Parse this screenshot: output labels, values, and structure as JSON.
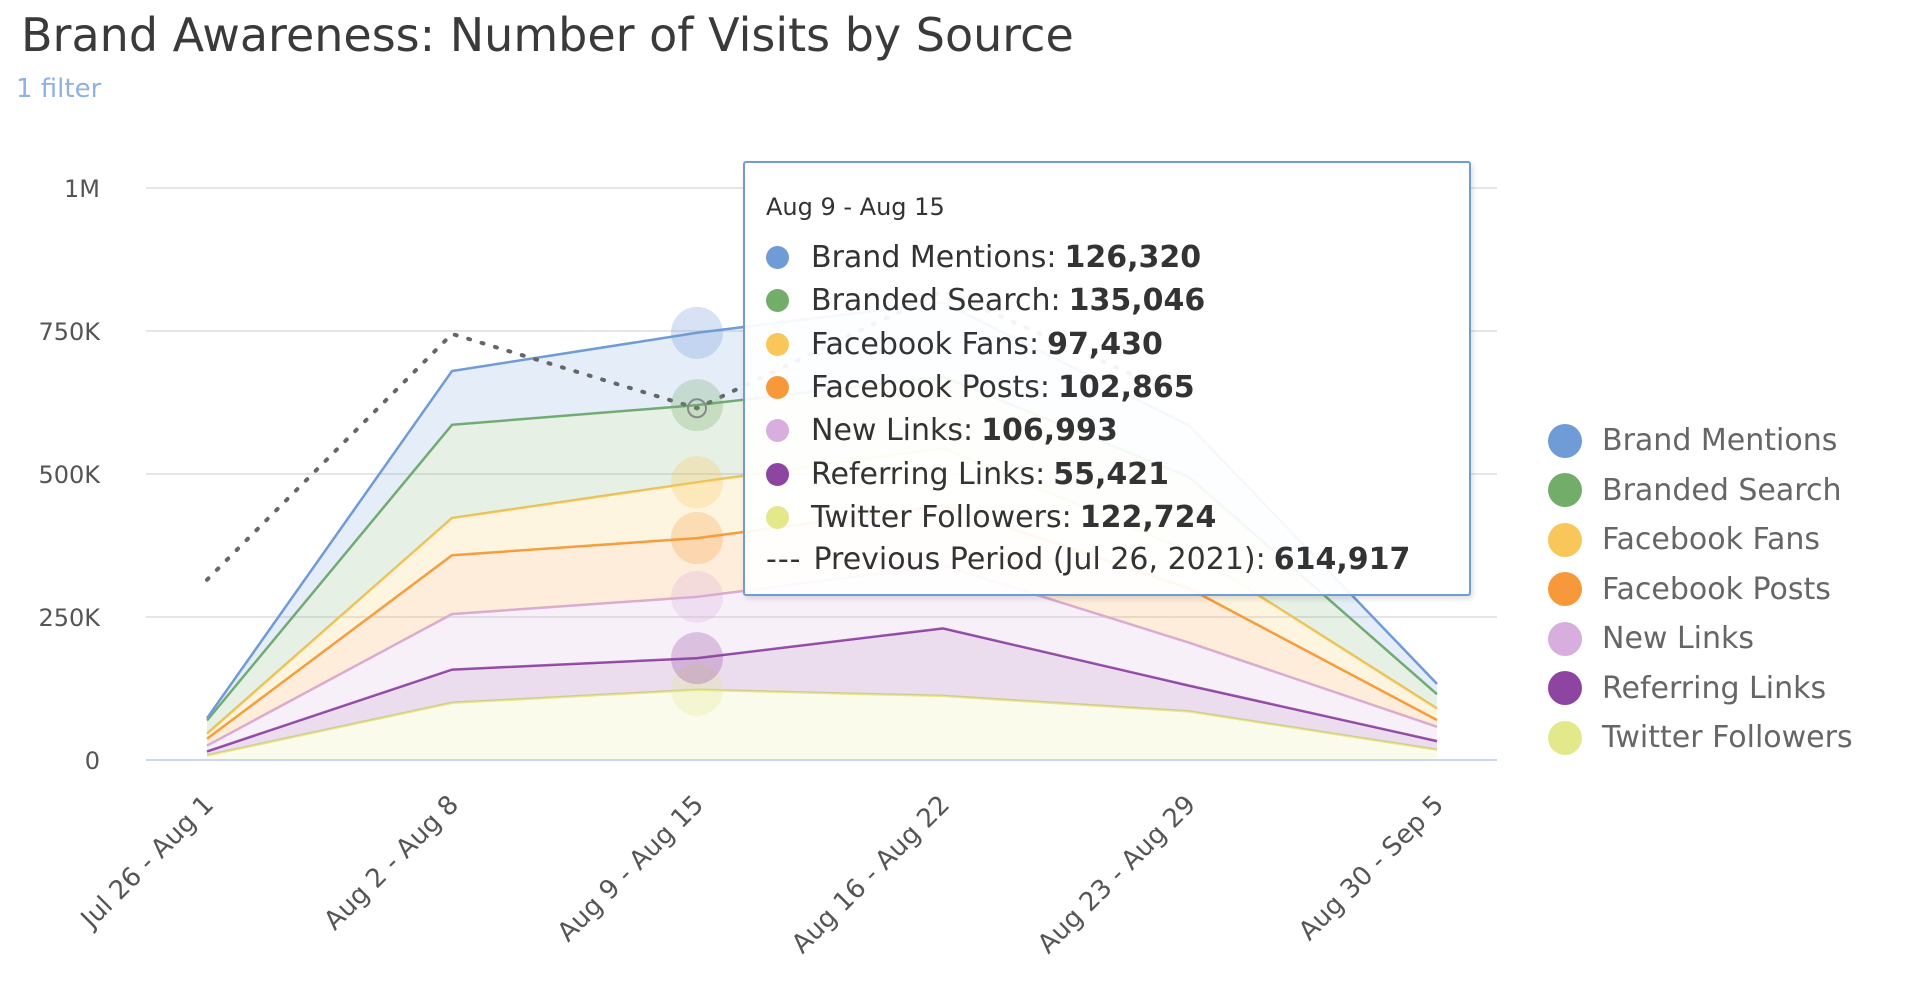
{
  "header": {
    "title": "Brand Awareness: Number of Visits by Source",
    "filter_label": "1 filter"
  },
  "chart_data": {
    "type": "area",
    "stacked": true,
    "categories": [
      "Jul 26 - Aug 1",
      "Aug 2 - Aug 8",
      "Aug 9 - Aug 15",
      "Aug 16 - Aug 22",
      "Aug 23 - Aug 29",
      "Aug 30 - Sep 5"
    ],
    "y_ticks": [
      "0",
      "250K",
      "500K",
      "750K",
      "1M"
    ],
    "ylim": [
      0,
      1000000
    ],
    "grid": true,
    "legend_position": "right",
    "series": [
      {
        "name": "Twitter Followers",
        "color": "#e3e88b",
        "values": [
          8000,
          100000,
          122724,
          112000,
          85000,
          18000
        ]
      },
      {
        "name": "Referring Links",
        "color": "#8e44a1",
        "values": [
          7000,
          58000,
          55421,
          118000,
          45000,
          15000
        ]
      },
      {
        "name": "New Links",
        "color": "#d7aede",
        "values": [
          10000,
          97000,
          106993,
          110000,
          75000,
          25000
        ]
      },
      {
        "name": "Facebook Posts",
        "color": "#f7993a",
        "values": [
          12000,
          103000,
          102865,
          105000,
          95000,
          12000
        ]
      },
      {
        "name": "Facebook Fans",
        "color": "#f9c65a",
        "values": [
          9000,
          65000,
          97430,
          100000,
          65000,
          20000
        ]
      },
      {
        "name": "Branded Search",
        "color": "#72ad6a",
        "values": [
          23000,
          163000,
          135046,
          125000,
          130000,
          25000
        ]
      },
      {
        "name": "Brand Mentions",
        "color": "#6f9bd6",
        "values": [
          4000,
          94000,
          126320,
          130000,
          90000,
          18000
        ]
      }
    ],
    "previous_period": {
      "label": "Previous Period (Jul 26, 2021)",
      "values": [
        315000,
        745000,
        614917,
        820000,
        630000
      ]
    },
    "highlight_index": 2
  },
  "legend": {
    "items": [
      {
        "label": "Brand Mentions",
        "color": "#6f9bd6"
      },
      {
        "label": "Branded Search",
        "color": "#72ad6a"
      },
      {
        "label": "Facebook Fans",
        "color": "#f9c65a"
      },
      {
        "label": "Facebook Posts",
        "color": "#f7993a"
      },
      {
        "label": "New Links",
        "color": "#d7aede"
      },
      {
        "label": "Referring Links",
        "color": "#8e44a1"
      },
      {
        "label": "Twitter Followers",
        "color": "#e3e88b"
      }
    ]
  },
  "tooltip": {
    "date": "Aug 9 - Aug 15",
    "rows": [
      {
        "label": "Brand Mentions:",
        "value": "126,320",
        "color": "#6f9bd6"
      },
      {
        "label": "Branded Search:",
        "value": "135,046",
        "color": "#72ad6a"
      },
      {
        "label": "Facebook Fans:",
        "value": "97,430",
        "color": "#f9c65a"
      },
      {
        "label": "Facebook Posts:",
        "value": "102,865",
        "color": "#f7993a"
      },
      {
        "label": "New Links:",
        "value": "106,993",
        "color": "#d7aede"
      },
      {
        "label": "Referring Links:",
        "value": "55,421",
        "color": "#8e44a1"
      },
      {
        "label": "Twitter Followers:",
        "value": "122,724",
        "color": "#e3e88b"
      }
    ],
    "previous_marker": "---",
    "previous_label": "Previous Period (Jul 26, 2021):",
    "previous_value": "614,917"
  }
}
